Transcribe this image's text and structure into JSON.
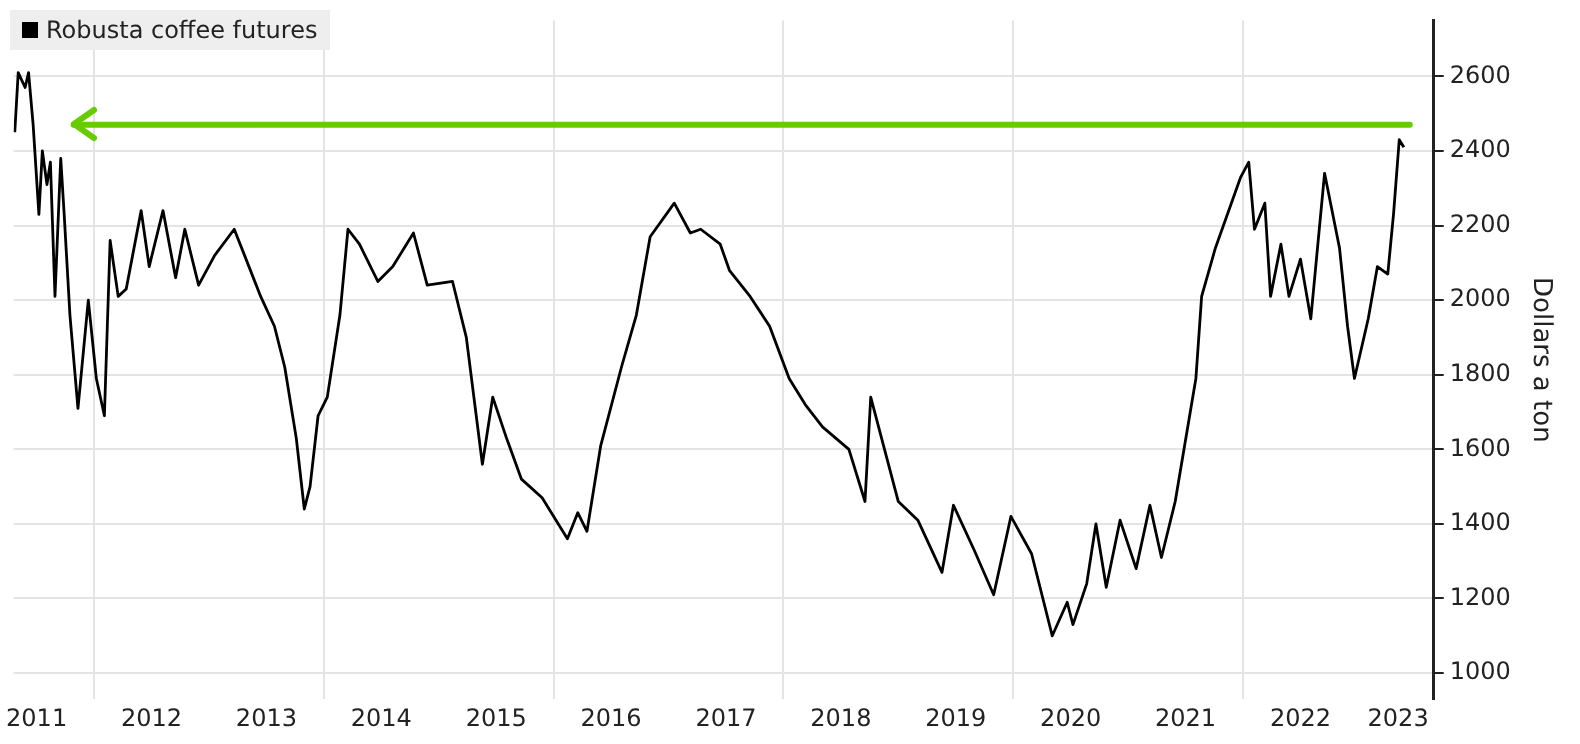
{
  "chart_data": {
    "type": "line",
    "ylabel": "Dollars a ton",
    "legend": "top left",
    "grid": true,
    "xlim": [
      2011.3,
      2023.66
    ],
    "ylim": [
      930,
      2750
    ],
    "xticks": [
      {
        "value": 2011.5,
        "label": "2011"
      },
      {
        "value": 2012,
        "label": null
      },
      {
        "value": 2012.5,
        "label": "2012"
      },
      {
        "value": 2013.5,
        "label": "2013"
      },
      {
        "value": 2014,
        "label": null
      },
      {
        "value": 2014.5,
        "label": "2014"
      },
      {
        "value": 2015.5,
        "label": "2015"
      },
      {
        "value": 2016,
        "label": null
      },
      {
        "value": 2016.5,
        "label": "2016"
      },
      {
        "value": 2017.5,
        "label": "2017"
      },
      {
        "value": 2018,
        "label": null
      },
      {
        "value": 2018.5,
        "label": "2018"
      },
      {
        "value": 2019.5,
        "label": "2019"
      },
      {
        "value": 2020,
        "label": null
      },
      {
        "value": 2020.5,
        "label": "2020"
      },
      {
        "value": 2021.5,
        "label": "2021"
      },
      {
        "value": 2022,
        "label": null
      },
      {
        "value": 2022.5,
        "label": "2022"
      },
      {
        "value": 2023.35,
        "label": "2023"
      }
    ],
    "yticks": [
      1000,
      1200,
      1400,
      1600,
      1800,
      2000,
      2200,
      2400,
      2600
    ],
    "ref_lines": [
      {
        "axis": "y",
        "value": 2470,
        "color": "#66cc00"
      }
    ],
    "series": [
      {
        "name": "Robusta coffee futures",
        "color": "#000000",
        "x": [
          2011.31,
          2011.34,
          2011.4,
          2011.43,
          2011.47,
          2011.52,
          2011.55,
          2011.59,
          2011.62,
          2011.66,
          2011.71,
          2011.74,
          2011.79,
          2011.86,
          2011.95,
          2012.02,
          2012.09,
          2012.14,
          2012.21,
          2012.28,
          2012.41,
          2012.48,
          2012.6,
          2012.71,
          2012.79,
          2012.91,
          2013.05,
          2013.22,
          2013.31,
          2013.45,
          2013.57,
          2013.66,
          2013.76,
          2013.83,
          2013.88,
          2013.95,
          2014.03,
          2014.14,
          2014.21,
          2014.31,
          2014.47,
          2014.6,
          2014.78,
          2014.9,
          2015.12,
          2015.24,
          2015.38,
          2015.47,
          2015.59,
          2015.72,
          2015.9,
          2016.12,
          2016.21,
          2016.29,
          2016.41,
          2016.59,
          2016.72,
          2016.84,
          2017.05,
          2017.19,
          2017.28,
          2017.45,
          2017.53,
          2017.71,
          2017.88,
          2018.05,
          2018.19,
          2018.34,
          2018.57,
          2018.71,
          2018.76,
          2018.88,
          2019.0,
          2019.17,
          2019.38,
          2019.48,
          2019.66,
          2019.83,
          2019.98,
          2020.16,
          2020.34,
          2020.47,
          2020.52,
          2020.64,
          2020.72,
          2020.81,
          2020.93,
          2021.07,
          2021.19,
          2021.29,
          2021.41,
          2021.59,
          2021.64,
          2021.76,
          2021.98,
          2022.05,
          2022.1,
          2022.19,
          2022.24,
          2022.33,
          2022.4,
          2022.5,
          2022.59,
          2022.71,
          2022.84,
          2022.91,
          2022.97,
          2023.09,
          2023.17,
          2023.26,
          2023.31,
          2023.36,
          2023.4
        ],
        "values": [
          2450,
          2610,
          2570,
          2610,
          2470,
          2230,
          2400,
          2310,
          2370,
          2010,
          2380,
          2230,
          1960,
          1710,
          2000,
          1790,
          1690,
          2160,
          2010,
          2030,
          2240,
          2090,
          2240,
          2060,
          2190,
          2040,
          2120,
          2190,
          2120,
          2010,
          1930,
          1820,
          1630,
          1440,
          1500,
          1690,
          1740,
          1960,
          2190,
          2150,
          2050,
          2090,
          2180,
          2040,
          2050,
          1900,
          1560,
          1740,
          1630,
          1520,
          1470,
          1360,
          1430,
          1380,
          1610,
          1820,
          1960,
          2170,
          2260,
          2180,
          2190,
          2150,
          2080,
          2010,
          1930,
          1790,
          1720,
          1660,
          1600,
          1460,
          1740,
          1600,
          1460,
          1410,
          1270,
          1450,
          1330,
          1210,
          1420,
          1320,
          1100,
          1190,
          1130,
          1240,
          1400,
          1230,
          1410,
          1280,
          1450,
          1310,
          1460,
          1790,
          2010,
          2140,
          2330,
          2370,
          2190,
          2260,
          2010,
          2150,
          2010,
          2110,
          1950,
          2340,
          2140,
          1930,
          1790,
          1950,
          2090,
          2070,
          2230,
          2430,
          2410
        ]
      }
    ]
  }
}
